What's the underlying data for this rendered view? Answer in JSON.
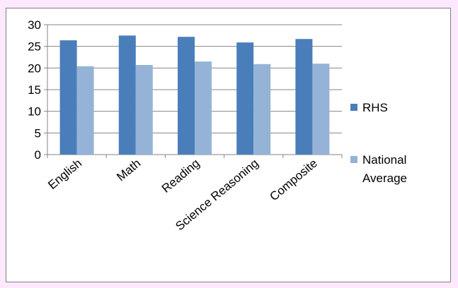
{
  "chart_data": {
    "type": "bar",
    "categories": [
      "English",
      "Math",
      "Reading",
      "Science Reasoning",
      "Composite"
    ],
    "series": [
      {
        "name": "RHS",
        "values": [
          26.4,
          27.5,
          27.2,
          25.9,
          26.7
        ],
        "color": "#4a7ebb"
      },
      {
        "name": "National Average",
        "values": [
          20.4,
          20.7,
          21.5,
          20.9,
          21.0
        ],
        "color": "#95b3d7"
      }
    ],
    "ylim": [
      0,
      30
    ],
    "yticks": [
      0,
      5,
      10,
      15,
      20,
      25,
      30
    ],
    "grid": true,
    "legend_position": "right",
    "legend_lines": [
      [
        "RHS"
      ],
      [
        "National",
        "Average"
      ]
    ]
  }
}
